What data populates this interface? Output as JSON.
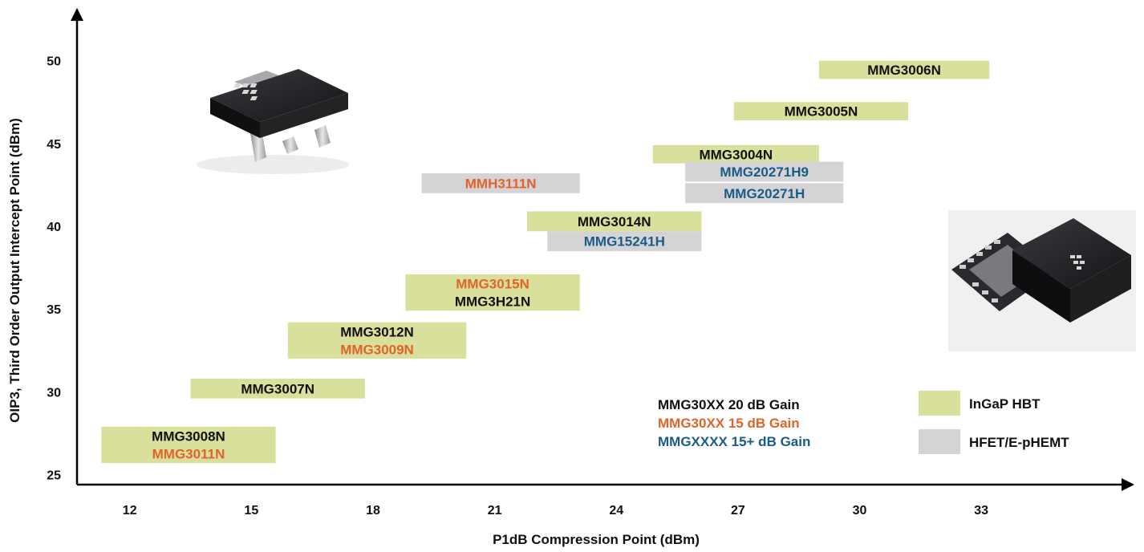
{
  "colors": {
    "hbt": "#d9e09b",
    "hfet": "#d4d4d6",
    "gain20": "#111111",
    "gain15": "#e0632a",
    "gain15plus": "#1b5c86"
  },
  "chart_data": {
    "type": "bar",
    "orientation": "floating-horizontal",
    "xlabel": "P1dB Compression Point (dBm)",
    "ylabel": "OIP3, Third Order Output Intercept Point (dBm)",
    "x_ticks": [
      12,
      15,
      18,
      21,
      24,
      27,
      30,
      33
    ],
    "y_ticks": [
      25,
      30,
      35,
      40,
      45,
      50
    ],
    "xlim": [
      10.7,
      36.5
    ],
    "ylim": [
      24.4,
      52.6
    ],
    "grid": false,
    "bars": [
      {
        "x": [
          29.0,
          33.2
        ],
        "y": [
          48.9,
          50.0
        ],
        "tech": "hbt",
        "labels": [
          {
            "text": "MMG3006N",
            "gain": "gain20"
          }
        ]
      },
      {
        "x": [
          26.9,
          31.2
        ],
        "y": [
          46.4,
          47.5
        ],
        "tech": "hbt",
        "labels": [
          {
            "text": "MMG3005N",
            "gain": "gain20"
          }
        ]
      },
      {
        "x": [
          24.9,
          29.0
        ],
        "y": [
          43.8,
          44.9
        ],
        "tech": "hbt",
        "labels": [
          {
            "text": "MMG3004N",
            "gain": "gain20"
          }
        ]
      },
      {
        "x": [
          25.7,
          29.6
        ],
        "y": [
          42.7,
          43.9
        ],
        "tech": "hfet",
        "labels": [
          {
            "text": "MMG20271H9",
            "gain": "gain15plus"
          }
        ]
      },
      {
        "x": [
          25.7,
          29.6
        ],
        "y": [
          41.4,
          42.6
        ],
        "tech": "hfet",
        "labels": [
          {
            "text": "MMG20271H",
            "gain": "gain15plus"
          }
        ]
      },
      {
        "x": [
          19.2,
          23.1
        ],
        "y": [
          42.0,
          43.2
        ],
        "tech": "hfet",
        "labels": [
          {
            "text": "MMH3111N",
            "gain": "gain15"
          }
        ]
      },
      {
        "x": [
          21.8,
          26.1
        ],
        "y": [
          39.7,
          40.9
        ],
        "tech": "hbt",
        "labels": [
          {
            "text": "MMG3014N",
            "gain": "gain20"
          }
        ]
      },
      {
        "x": [
          22.3,
          26.1
        ],
        "y": [
          38.5,
          39.7
        ],
        "tech": "hfet",
        "labels": [
          {
            "text": "MMG15241H",
            "gain": "gain15plus"
          }
        ]
      },
      {
        "x": [
          18.8,
          23.1
        ],
        "y": [
          34.9,
          37.1
        ],
        "tech": "hbt",
        "labels": [
          {
            "text": "MMG3015N",
            "gain": "gain15"
          },
          {
            "text": "MMG3H21N",
            "gain": "gain20"
          }
        ]
      },
      {
        "x": [
          15.9,
          20.3
        ],
        "y": [
          32.0,
          34.2
        ],
        "tech": "hbt",
        "labels": [
          {
            "text": "MMG3012N",
            "gain": "gain20"
          },
          {
            "text": "MMG3009N",
            "gain": "gain15"
          }
        ]
      },
      {
        "x": [
          13.5,
          17.8
        ],
        "y": [
          29.6,
          30.8
        ],
        "tech": "hbt",
        "labels": [
          {
            "text": "MMG3007N",
            "gain": "gain20"
          }
        ]
      },
      {
        "x": [
          11.3,
          15.6
        ],
        "y": [
          25.7,
          27.9
        ],
        "tech": "hbt",
        "labels": [
          {
            "text": "MMG3008N",
            "gain": "gain20"
          },
          {
            "text": "MMG3011N",
            "gain": "gain15"
          }
        ]
      }
    ],
    "legend_gain": [
      {
        "text": "MMG30XX 20 dB Gain",
        "gain": "gain20"
      },
      {
        "text": "MMG30XX 15 dB Gain",
        "gain": "gain15"
      },
      {
        "text": "MMGXXXX 15+ dB Gain",
        "gain": "gain15plus"
      }
    ],
    "legend_tech": [
      {
        "text": "InGaP HBT",
        "tech": "hbt"
      },
      {
        "text": "HFET/E-pHEMT",
        "tech": "hfet"
      }
    ],
    "legend_placement": "bottom-right",
    "images": [
      {
        "name": "sot89-package-image",
        "placement": "top-left"
      },
      {
        "name": "qfn-package-image",
        "placement": "right"
      }
    ]
  }
}
